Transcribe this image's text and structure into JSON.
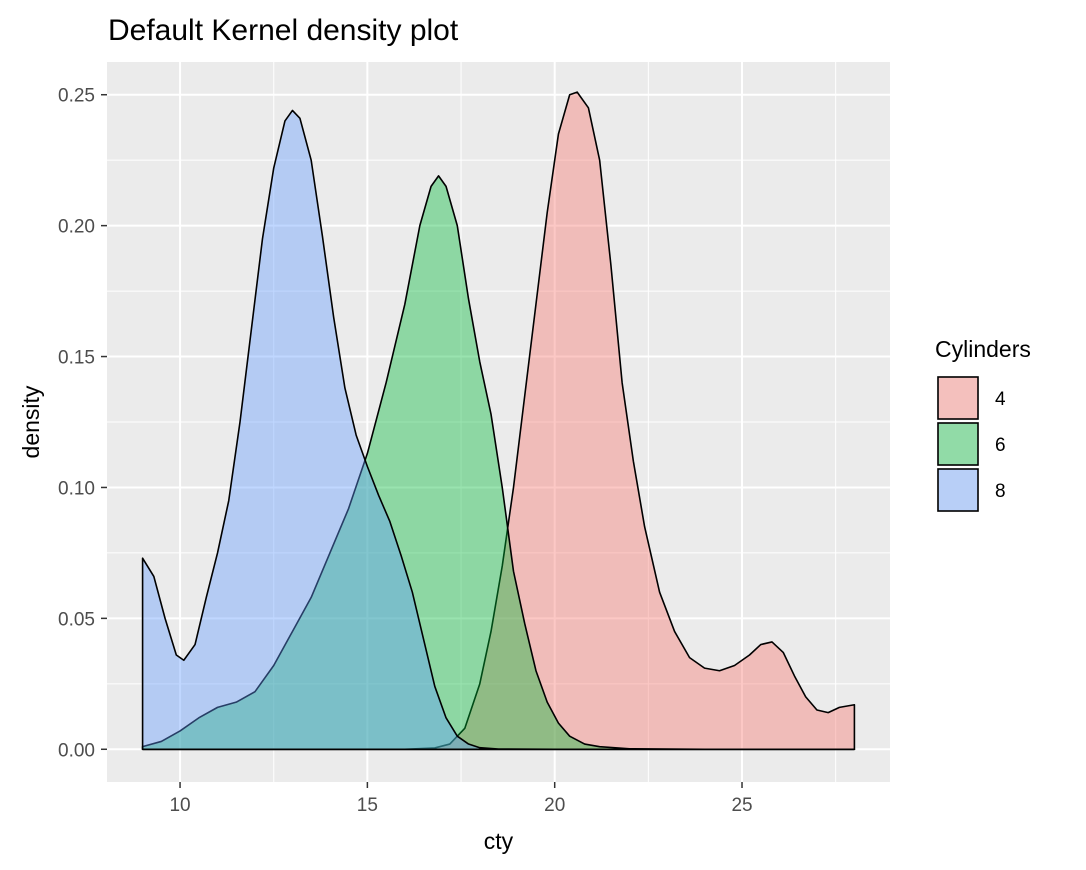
{
  "chart_data": {
    "type": "area",
    "title": "Default Kernel density plot",
    "xlabel": "cty",
    "ylabel": "density",
    "xlim": [
      8.05,
      28.95
    ],
    "ylim": [
      -0.0125,
      0.2625
    ],
    "x_ticks": [
      10,
      15,
      20,
      25
    ],
    "y_ticks": [
      0.0,
      0.05,
      0.1,
      0.15,
      0.2,
      0.25
    ],
    "x_tick_labels": [
      "10",
      "15",
      "20",
      "25"
    ],
    "y_tick_labels": [
      "0.00",
      "0.05",
      "0.10",
      "0.15",
      "0.20",
      "0.25"
    ],
    "grid": true,
    "legend": {
      "title": "Cylinders",
      "position": "right"
    },
    "series": [
      {
        "name": "4",
        "color": "#F8766D",
        "points": [
          [
            9,
            0
          ],
          [
            10,
            0
          ],
          [
            12,
            0
          ],
          [
            14,
            0
          ],
          [
            15,
            0
          ],
          [
            16,
            0
          ],
          [
            16.8,
            0.0005
          ],
          [
            17.2,
            0.002
          ],
          [
            17.6,
            0.008
          ],
          [
            18,
            0.025
          ],
          [
            18.3,
            0.045
          ],
          [
            18.6,
            0.07
          ],
          [
            18.9,
            0.1
          ],
          [
            19.2,
            0.135
          ],
          [
            19.5,
            0.17
          ],
          [
            19.8,
            0.205
          ],
          [
            20.1,
            0.235
          ],
          [
            20.4,
            0.25
          ],
          [
            20.6,
            0.251
          ],
          [
            20.9,
            0.245
          ],
          [
            21.2,
            0.225
          ],
          [
            21.5,
            0.185
          ],
          [
            21.8,
            0.14
          ],
          [
            22.1,
            0.11
          ],
          [
            22.4,
            0.085
          ],
          [
            22.8,
            0.06
          ],
          [
            23.2,
            0.045
          ],
          [
            23.6,
            0.035
          ],
          [
            24,
            0.031
          ],
          [
            24.4,
            0.03
          ],
          [
            24.8,
            0.032
          ],
          [
            25.2,
            0.036
          ],
          [
            25.5,
            0.04
          ],
          [
            25.8,
            0.041
          ],
          [
            26.1,
            0.037
          ],
          [
            26.4,
            0.028
          ],
          [
            26.7,
            0.02
          ],
          [
            27,
            0.015
          ],
          [
            27.3,
            0.014
          ],
          [
            27.6,
            0.016
          ],
          [
            28,
            0.017
          ]
        ]
      },
      {
        "name": "6",
        "color": "#00BA38",
        "points": [
          [
            9,
            0.001
          ],
          [
            9.5,
            0.003
          ],
          [
            10,
            0.007
          ],
          [
            10.5,
            0.012
          ],
          [
            11,
            0.016
          ],
          [
            11.5,
            0.018
          ],
          [
            12,
            0.022
          ],
          [
            12.5,
            0.032
          ],
          [
            13,
            0.045
          ],
          [
            13.5,
            0.058
          ],
          [
            14,
            0.075
          ],
          [
            14.5,
            0.092
          ],
          [
            15,
            0.113
          ],
          [
            15.5,
            0.14
          ],
          [
            16,
            0.17
          ],
          [
            16.4,
            0.2
          ],
          [
            16.7,
            0.215
          ],
          [
            16.9,
            0.219
          ],
          [
            17.1,
            0.215
          ],
          [
            17.4,
            0.2
          ],
          [
            17.7,
            0.172
          ],
          [
            18,
            0.148
          ],
          [
            18.3,
            0.128
          ],
          [
            18.6,
            0.1
          ],
          [
            18.9,
            0.068
          ],
          [
            19.2,
            0.048
          ],
          [
            19.5,
            0.03
          ],
          [
            19.8,
            0.018
          ],
          [
            20.1,
            0.01
          ],
          [
            20.4,
            0.005
          ],
          [
            20.8,
            0.002
          ],
          [
            21.2,
            0.001
          ],
          [
            22,
            0.0002
          ],
          [
            24,
            0
          ],
          [
            26,
            0
          ],
          [
            28,
            0
          ]
        ]
      },
      {
        "name": "8",
        "color": "#619CFF",
        "points": [
          [
            9,
            0.073
          ],
          [
            9.3,
            0.066
          ],
          [
            9.6,
            0.05
          ],
          [
            9.9,
            0.036
          ],
          [
            10.1,
            0.034
          ],
          [
            10.4,
            0.04
          ],
          [
            10.7,
            0.058
          ],
          [
            11,
            0.075
          ],
          [
            11.3,
            0.095
          ],
          [
            11.6,
            0.125
          ],
          [
            11.9,
            0.16
          ],
          [
            12.2,
            0.195
          ],
          [
            12.5,
            0.222
          ],
          [
            12.8,
            0.24
          ],
          [
            13,
            0.244
          ],
          [
            13.2,
            0.241
          ],
          [
            13.5,
            0.225
          ],
          [
            13.8,
            0.196
          ],
          [
            14.1,
            0.165
          ],
          [
            14.4,
            0.138
          ],
          [
            14.7,
            0.12
          ],
          [
            15,
            0.108
          ],
          [
            15.3,
            0.097
          ],
          [
            15.6,
            0.087
          ],
          [
            15.9,
            0.074
          ],
          [
            16.2,
            0.06
          ],
          [
            16.5,
            0.042
          ],
          [
            16.8,
            0.024
          ],
          [
            17.1,
            0.012
          ],
          [
            17.4,
            0.005
          ],
          [
            17.7,
            0.002
          ],
          [
            18,
            0.0006
          ],
          [
            18.5,
            0.0001
          ],
          [
            20,
            0
          ],
          [
            24,
            0
          ],
          [
            28,
            0
          ]
        ]
      }
    ]
  }
}
